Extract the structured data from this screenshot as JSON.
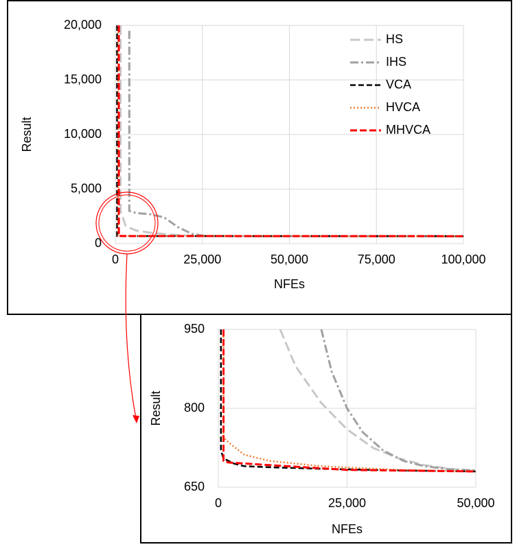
{
  "chart_data": [
    {
      "type": "line",
      "xlabel": "NFEs",
      "ylabel": "Result",
      "xlim": [
        0,
        100000
      ],
      "ylim": [
        0,
        20000
      ],
      "xticks": [
        0,
        {
          "value": 25000,
          "label": "25,000"
        },
        {
          "value": 50000,
          "label": "50,000"
        },
        {
          "value": 75000,
          "label": "75,000"
        },
        {
          "value": 100000,
          "label": "100,000"
        }
      ],
      "yticks": [
        0,
        {
          "value": 5000,
          "label": "5,000"
        },
        {
          "value": 10000,
          "label": "10,000"
        },
        {
          "value": 15000,
          "label": "15,000"
        },
        {
          "value": 20000,
          "label": "20,000"
        }
      ],
      "grid": true,
      "legend": "top-right",
      "series": [
        {
          "name": "HS",
          "color": "#c8c8c8",
          "x": [
            1500,
            1500,
            3000,
            6000,
            10000,
            15000,
            20000,
            25000,
            100000
          ],
          "values": [
            20000,
            3000,
            1600,
            1200,
            1000,
            850,
            750,
            690,
            680
          ]
        },
        {
          "name": "IHS",
          "color": "#a0a0a0",
          "x": [
            4000,
            4000,
            6000,
            10000,
            14000,
            18000,
            22000,
            26000,
            100000
          ],
          "values": [
            19500,
            3000,
            2800,
            2700,
            2400,
            1500,
            900,
            700,
            680
          ]
        },
        {
          "name": "VCA",
          "color": "#000000",
          "x": [
            500,
            500,
            3000,
            100000
          ],
          "values": [
            20000,
            700,
            690,
            680
          ]
        },
        {
          "name": "HVCA",
          "color": "#ed7d31",
          "x": [
            800,
            800,
            5000,
            100000
          ],
          "values": [
            20000,
            740,
            700,
            680
          ]
        },
        {
          "name": "MHVCA",
          "color": "#ff0000",
          "x": [
            1000,
            1000,
            3000,
            100000
          ],
          "values": [
            20000,
            700,
            690,
            680
          ]
        }
      ]
    },
    {
      "type": "line",
      "xlabel": "NFEs",
      "ylabel": "Result",
      "xlim": [
        0,
        50000
      ],
      "ylim": [
        650,
        950
      ],
      "xticks": [
        0,
        {
          "value": 25000,
          "label": "25,000"
        },
        {
          "value": 50000,
          "label": "50,000"
        }
      ],
      "yticks": [
        650,
        800,
        950
      ],
      "grid": true,
      "series": [
        {
          "name": "HS",
          "color": "#c8c8c8",
          "x": [
            12000,
            15000,
            20000,
            25000,
            30000,
            35000,
            40000,
            45000,
            50000
          ],
          "values": [
            950,
            880,
            810,
            760,
            725,
            705,
            692,
            685,
            681
          ]
        },
        {
          "name": "IHS",
          "color": "#a0a0a0",
          "x": [
            20000,
            22000,
            25000,
            28000,
            32000,
            36000,
            40000,
            45000,
            50000
          ],
          "values": [
            950,
            870,
            800,
            755,
            720,
            700,
            690,
            684,
            682
          ]
        },
        {
          "name": "VCA",
          "color": "#000000",
          "x": [
            500,
            500,
            1000,
            3000,
            5000,
            10000,
            20000,
            35000,
            50000
          ],
          "values": [
            950,
            720,
            705,
            695,
            690,
            688,
            685,
            682,
            680
          ]
        },
        {
          "name": "HVCA",
          "color": "#ed7d31",
          "x": [
            1000,
            1000,
            2000,
            5000,
            10000,
            20000,
            35000,
            50000
          ],
          "values": [
            950,
            745,
            735,
            712,
            700,
            690,
            683,
            680
          ]
        },
        {
          "name": "MHVCA",
          "color": "#ff0000",
          "x": [
            1000,
            1000,
            2000,
            10000,
            25000,
            50000
          ],
          "values": [
            950,
            700,
            697,
            692,
            683,
            680
          ]
        }
      ]
    }
  ]
}
